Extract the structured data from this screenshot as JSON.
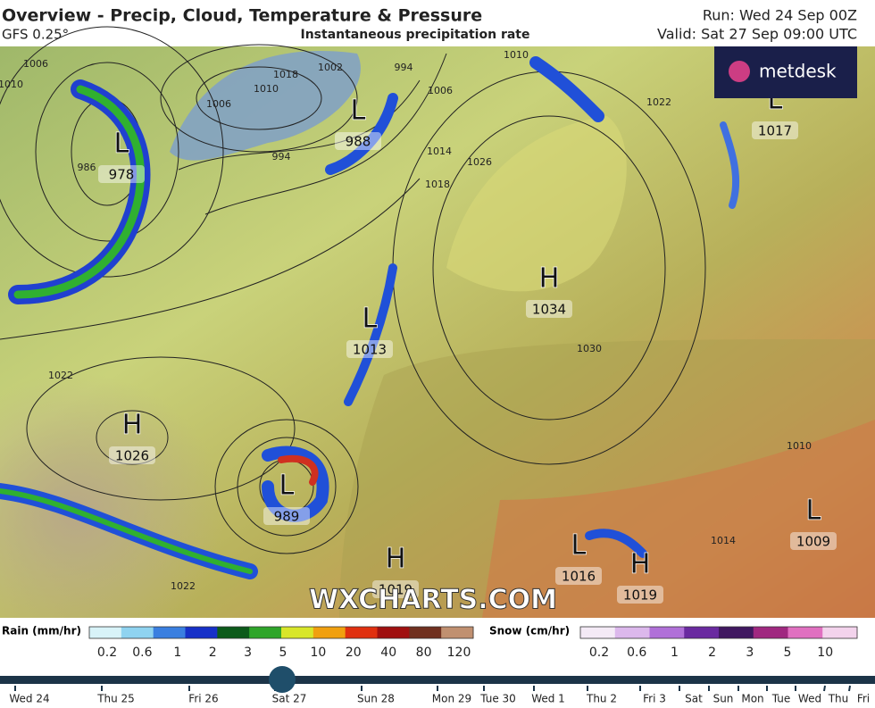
{
  "header": {
    "title": "Overview - Precip, Cloud, Temperature & Pressure",
    "model": "GFS 0.25°",
    "subtitle": "Instantaneous precipitation rate",
    "run": "Run: Wed 24 Sep 00Z",
    "valid": "Valid: Sat 27 Sep 09:00 UTC"
  },
  "logo": "metdesk",
  "watermark": "WXCHARTS.COM",
  "pressure_systems": [
    {
      "letter": "L",
      "value": 978
    },
    {
      "letter": "L",
      "value": 988
    },
    {
      "letter": "L",
      "value": 1017
    },
    {
      "letter": "H",
      "value": 1034
    },
    {
      "letter": "L",
      "value": 1013
    },
    {
      "letter": "H",
      "value": 1026
    },
    {
      "letter": "L",
      "value": 989
    },
    {
      "letter": "H",
      "value": 1019
    },
    {
      "letter": "L",
      "value": 1016
    },
    {
      "letter": "H",
      "value": 1019
    },
    {
      "letter": "L",
      "value": 1009
    }
  ],
  "isobar_labels": [
    1006,
    1010,
    986,
    1006,
    1010,
    1018,
    1002,
    994,
    1006,
    1010,
    1022,
    994,
    1014,
    1018,
    1026,
    1030,
    1022,
    1022,
    1014,
    1010
  ],
  "rain_legend": {
    "title": "Rain (mm/hr)",
    "ticks": [
      0.2,
      0.6,
      1,
      2,
      3,
      5,
      10,
      20,
      40,
      80,
      120
    ],
    "colors": [
      "#d8f3f8",
      "#8fd3f0",
      "#3a7fe0",
      "#1630c8",
      "#0c5a1a",
      "#2fa52a",
      "#d8e62a",
      "#f0a010",
      "#e03010",
      "#a01010",
      "#703020",
      "#c09070"
    ]
  },
  "snow_legend": {
    "title": "Snow (cm/hr)",
    "ticks": [
      0.2,
      0.6,
      1,
      2,
      3,
      5,
      10
    ],
    "colors": [
      "#f4eaf6",
      "#dcb8ec",
      "#b070d8",
      "#6a2aa0",
      "#401860",
      "#a02880",
      "#e070c0",
      "#f3d3ec"
    ]
  },
  "timeline": {
    "labels": [
      "Wed 24",
      "Thu 25",
      "Fri 26",
      "Sat 27",
      "Sun 28",
      "Mon 29",
      "Tue 30",
      "Wed 1",
      "Thu 2",
      "Fri 3",
      "Sat",
      "Sun",
      "Mon",
      "Tue",
      "Wed",
      "Thu",
      "Fri"
    ],
    "current": 3
  }
}
